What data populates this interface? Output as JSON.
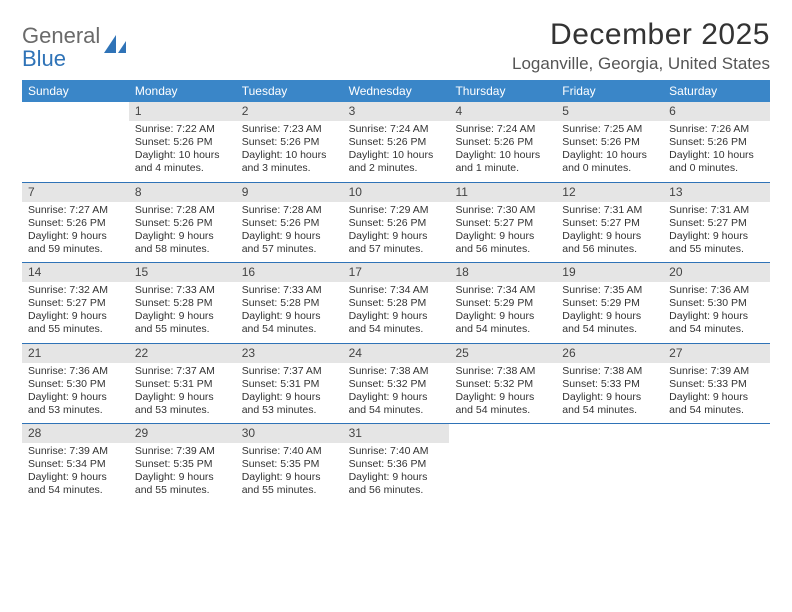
{
  "logo": {
    "text_top": "General",
    "text_bottom": "Blue"
  },
  "title": "December 2025",
  "location": "Loganville, Georgia, United States",
  "colors": {
    "header_bg": "#3a86c8",
    "header_text": "#ffffff",
    "daynum_bg": "#e5e5e5",
    "week_border": "#2f73b7",
    "text": "#333333",
    "logo_gray": "#6a6a6a",
    "logo_blue": "#2f73b7"
  },
  "weekdays": [
    "Sunday",
    "Monday",
    "Tuesday",
    "Wednesday",
    "Thursday",
    "Friday",
    "Saturday"
  ],
  "weeks": [
    [
      null,
      {
        "n": "1",
        "sr": "Sunrise: 7:22 AM",
        "ss": "Sunset: 5:26 PM",
        "dl": "Daylight: 10 hours and 4 minutes."
      },
      {
        "n": "2",
        "sr": "Sunrise: 7:23 AM",
        "ss": "Sunset: 5:26 PM",
        "dl": "Daylight: 10 hours and 3 minutes."
      },
      {
        "n": "3",
        "sr": "Sunrise: 7:24 AM",
        "ss": "Sunset: 5:26 PM",
        "dl": "Daylight: 10 hours and 2 minutes."
      },
      {
        "n": "4",
        "sr": "Sunrise: 7:24 AM",
        "ss": "Sunset: 5:26 PM",
        "dl": "Daylight: 10 hours and 1 minute."
      },
      {
        "n": "5",
        "sr": "Sunrise: 7:25 AM",
        "ss": "Sunset: 5:26 PM",
        "dl": "Daylight: 10 hours and 0 minutes."
      },
      {
        "n": "6",
        "sr": "Sunrise: 7:26 AM",
        "ss": "Sunset: 5:26 PM",
        "dl": "Daylight: 10 hours and 0 minutes."
      }
    ],
    [
      {
        "n": "7",
        "sr": "Sunrise: 7:27 AM",
        "ss": "Sunset: 5:26 PM",
        "dl": "Daylight: 9 hours and 59 minutes."
      },
      {
        "n": "8",
        "sr": "Sunrise: 7:28 AM",
        "ss": "Sunset: 5:26 PM",
        "dl": "Daylight: 9 hours and 58 minutes."
      },
      {
        "n": "9",
        "sr": "Sunrise: 7:28 AM",
        "ss": "Sunset: 5:26 PM",
        "dl": "Daylight: 9 hours and 57 minutes."
      },
      {
        "n": "10",
        "sr": "Sunrise: 7:29 AM",
        "ss": "Sunset: 5:26 PM",
        "dl": "Daylight: 9 hours and 57 minutes."
      },
      {
        "n": "11",
        "sr": "Sunrise: 7:30 AM",
        "ss": "Sunset: 5:27 PM",
        "dl": "Daylight: 9 hours and 56 minutes."
      },
      {
        "n": "12",
        "sr": "Sunrise: 7:31 AM",
        "ss": "Sunset: 5:27 PM",
        "dl": "Daylight: 9 hours and 56 minutes."
      },
      {
        "n": "13",
        "sr": "Sunrise: 7:31 AM",
        "ss": "Sunset: 5:27 PM",
        "dl": "Daylight: 9 hours and 55 minutes."
      }
    ],
    [
      {
        "n": "14",
        "sr": "Sunrise: 7:32 AM",
        "ss": "Sunset: 5:27 PM",
        "dl": "Daylight: 9 hours and 55 minutes."
      },
      {
        "n": "15",
        "sr": "Sunrise: 7:33 AM",
        "ss": "Sunset: 5:28 PM",
        "dl": "Daylight: 9 hours and 55 minutes."
      },
      {
        "n": "16",
        "sr": "Sunrise: 7:33 AM",
        "ss": "Sunset: 5:28 PM",
        "dl": "Daylight: 9 hours and 54 minutes."
      },
      {
        "n": "17",
        "sr": "Sunrise: 7:34 AM",
        "ss": "Sunset: 5:28 PM",
        "dl": "Daylight: 9 hours and 54 minutes."
      },
      {
        "n": "18",
        "sr": "Sunrise: 7:34 AM",
        "ss": "Sunset: 5:29 PM",
        "dl": "Daylight: 9 hours and 54 minutes."
      },
      {
        "n": "19",
        "sr": "Sunrise: 7:35 AM",
        "ss": "Sunset: 5:29 PM",
        "dl": "Daylight: 9 hours and 54 minutes."
      },
      {
        "n": "20",
        "sr": "Sunrise: 7:36 AM",
        "ss": "Sunset: 5:30 PM",
        "dl": "Daylight: 9 hours and 54 minutes."
      }
    ],
    [
      {
        "n": "21",
        "sr": "Sunrise: 7:36 AM",
        "ss": "Sunset: 5:30 PM",
        "dl": "Daylight: 9 hours and 53 minutes."
      },
      {
        "n": "22",
        "sr": "Sunrise: 7:37 AM",
        "ss": "Sunset: 5:31 PM",
        "dl": "Daylight: 9 hours and 53 minutes."
      },
      {
        "n": "23",
        "sr": "Sunrise: 7:37 AM",
        "ss": "Sunset: 5:31 PM",
        "dl": "Daylight: 9 hours and 53 minutes."
      },
      {
        "n": "24",
        "sr": "Sunrise: 7:38 AM",
        "ss": "Sunset: 5:32 PM",
        "dl": "Daylight: 9 hours and 54 minutes."
      },
      {
        "n": "25",
        "sr": "Sunrise: 7:38 AM",
        "ss": "Sunset: 5:32 PM",
        "dl": "Daylight: 9 hours and 54 minutes."
      },
      {
        "n": "26",
        "sr": "Sunrise: 7:38 AM",
        "ss": "Sunset: 5:33 PM",
        "dl": "Daylight: 9 hours and 54 minutes."
      },
      {
        "n": "27",
        "sr": "Sunrise: 7:39 AM",
        "ss": "Sunset: 5:33 PM",
        "dl": "Daylight: 9 hours and 54 minutes."
      }
    ],
    [
      {
        "n": "28",
        "sr": "Sunrise: 7:39 AM",
        "ss": "Sunset: 5:34 PM",
        "dl": "Daylight: 9 hours and 54 minutes."
      },
      {
        "n": "29",
        "sr": "Sunrise: 7:39 AM",
        "ss": "Sunset: 5:35 PM",
        "dl": "Daylight: 9 hours and 55 minutes."
      },
      {
        "n": "30",
        "sr": "Sunrise: 7:40 AM",
        "ss": "Sunset: 5:35 PM",
        "dl": "Daylight: 9 hours and 55 minutes."
      },
      {
        "n": "31",
        "sr": "Sunrise: 7:40 AM",
        "ss": "Sunset: 5:36 PM",
        "dl": "Daylight: 9 hours and 56 minutes."
      },
      null,
      null,
      null
    ]
  ]
}
